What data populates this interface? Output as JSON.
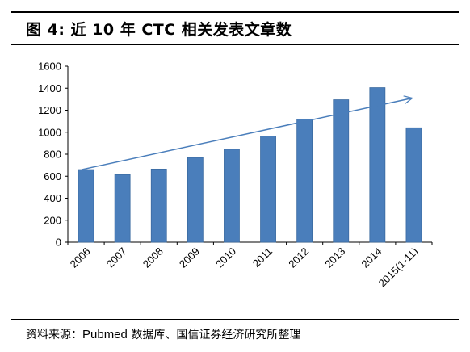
{
  "header": {
    "title": "图 4:  近 10 年 CTC 相关发表文章数"
  },
  "chart_data": {
    "type": "bar",
    "categories": [
      "2006",
      "2007",
      "2008",
      "2009",
      "2010",
      "2011",
      "2012",
      "2013",
      "2014",
      "2015(1-11)"
    ],
    "values": [
      660,
      615,
      665,
      770,
      845,
      965,
      1120,
      1295,
      1405,
      1040
    ],
    "ylim": [
      0,
      1600
    ],
    "yticks": [
      "0",
      "200",
      "400",
      "600",
      "800",
      "1000",
      "1200",
      "1400",
      "1600"
    ],
    "title": "",
    "xlabel": "",
    "ylabel": "",
    "bar_color": "#4a7ebb",
    "bar_edge_color": "#3a6aa0",
    "trend_arrow": {
      "from": {
        "category": "2006",
        "value": 660
      },
      "to": {
        "category": "2015(1-11)",
        "value": 1310
      },
      "color": "#4a7ebb"
    },
    "grid": false,
    "legend": "none"
  },
  "footer": {
    "source_prefix": "资料来源：",
    "source_pub": "Pubmed",
    "source_suffix": " 数据库、国信证券经济研究所整理"
  }
}
